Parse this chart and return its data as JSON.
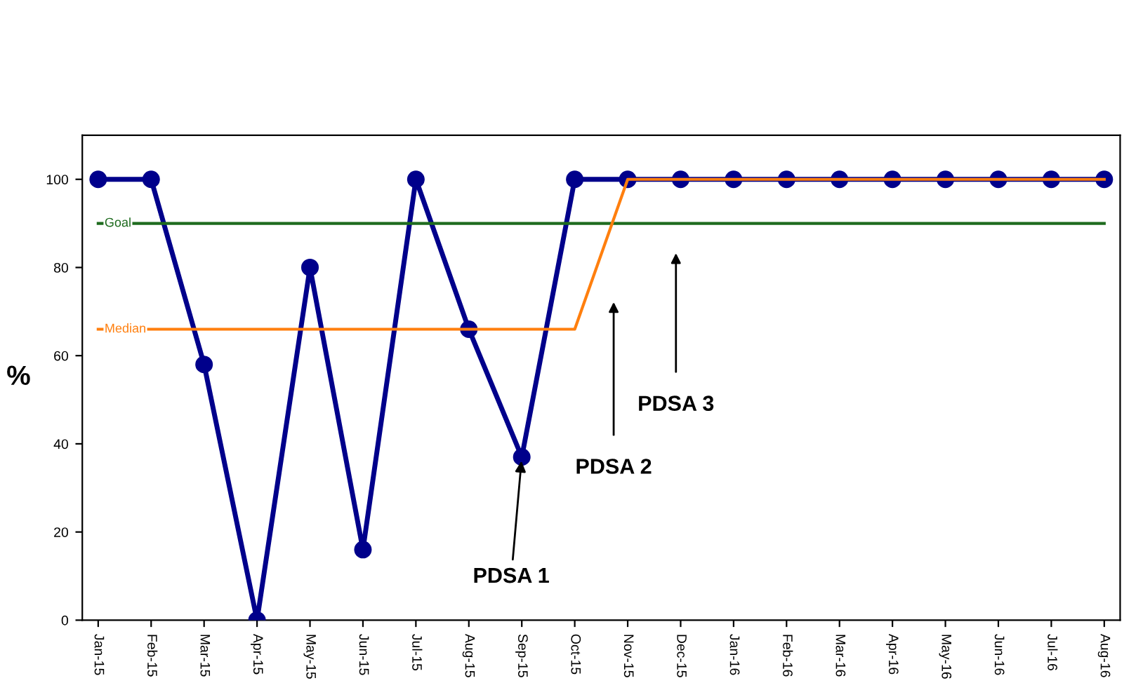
{
  "chart_data": {
    "type": "line",
    "ylabel": "%",
    "categories": [
      "Jan-15",
      "Feb-15",
      "Mar-15",
      "Apr-15",
      "May-15",
      "Jun-15",
      "Jul-15",
      "Aug-15",
      "Sep-15",
      "Oct-15",
      "Nov-15",
      "Dec-15",
      "Jan-16",
      "Feb-16",
      "Mar-16",
      "Apr-16",
      "May-16",
      "Jun-16",
      "Jul-16",
      "Aug-16"
    ],
    "series": [
      {
        "color": "#00008b",
        "marker": "circle",
        "values": [
          100,
          100,
          58,
          0,
          80,
          16,
          100,
          66,
          37,
          100,
          100,
          100,
          100,
          100,
          100,
          100,
          100,
          100,
          100,
          100
        ]
      },
      {
        "name": "Goal",
        "color": "#1e6b1e",
        "marker": "none",
        "values": [
          90,
          90,
          90,
          90,
          90,
          90,
          90,
          90,
          90,
          90,
          90,
          90,
          90,
          90,
          90,
          90,
          90,
          90,
          90,
          90
        ]
      },
      {
        "name": "Median",
        "color": "#ff7f0e",
        "marker": "none",
        "values": [
          66,
          66,
          66,
          66,
          66,
          66,
          66,
          66,
          66,
          66,
          100,
          100,
          100,
          100,
          100,
          100,
          100,
          100,
          100,
          100
        ]
      }
    ],
    "ylim": [
      0,
      110
    ],
    "yticks": [
      0,
      20,
      40,
      60,
      80,
      100
    ],
    "grid": false,
    "legend": false,
    "line_style": "solid",
    "annotations": [
      {
        "text": "PDSA 1",
        "x": "Sep-15",
        "y": 37
      },
      "PDSA 2",
      "PDSA 3"
    ]
  }
}
